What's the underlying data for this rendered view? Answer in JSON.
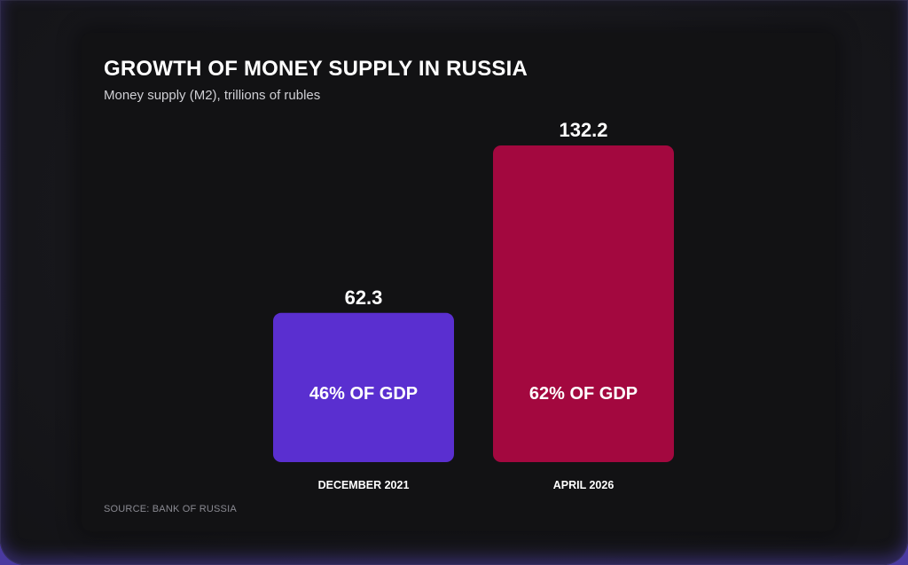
{
  "chart_data": {
    "type": "bar",
    "title": "GROWTH OF MONEY SUPPLY IN RUSSIA",
    "subtitle": "Money supply (M2), trillions of rubles",
    "categories": [
      "DECEMBER 2021",
      "APRIL 2026"
    ],
    "values": [
      62.3,
      132.2
    ],
    "value_labels": [
      "62.3",
      "132.2"
    ],
    "bar_annotations": [
      "46% OF GDP",
      "62% OF GDP"
    ],
    "bar_colors": [
      "#5a2fd0",
      "#a3083f"
    ],
    "ylim": [
      0,
      132.2
    ],
    "grid": false,
    "legend": "none",
    "source": "SOURCE: BANK OF RUSSIA"
  }
}
